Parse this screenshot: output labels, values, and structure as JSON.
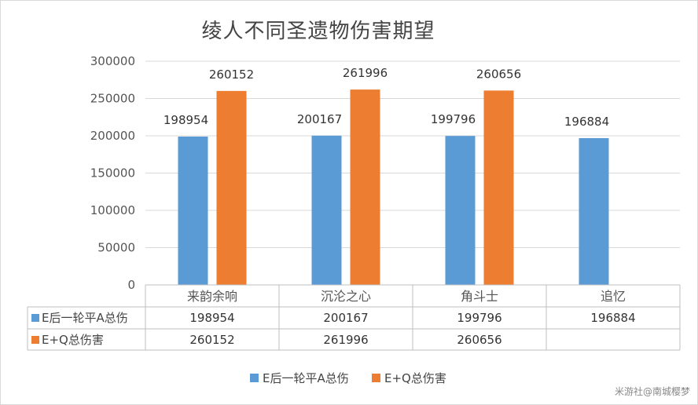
{
  "chart_data": {
    "type": "bar",
    "title": "绫人不同圣遗物伤害期望",
    "categories": [
      "来韵余响",
      "沉沦之心",
      "角斗士",
      "追忆"
    ],
    "series": [
      {
        "name": "E后一轮平A总伤",
        "color": "#5b9bd5",
        "values": [
          198954,
          200167,
          199796,
          196884
        ]
      },
      {
        "name": "E+Q总伤害",
        "color": "#ed7d31",
        "values": [
          260152,
          261996,
          260656,
          null
        ]
      }
    ],
    "ylim": [
      0,
      300000
    ],
    "yticks": [
      0,
      50000,
      100000,
      150000,
      200000,
      250000,
      300000
    ],
    "grid": true,
    "legend": "bottom",
    "data_table": true
  },
  "watermark": "米游社@南城樱梦"
}
